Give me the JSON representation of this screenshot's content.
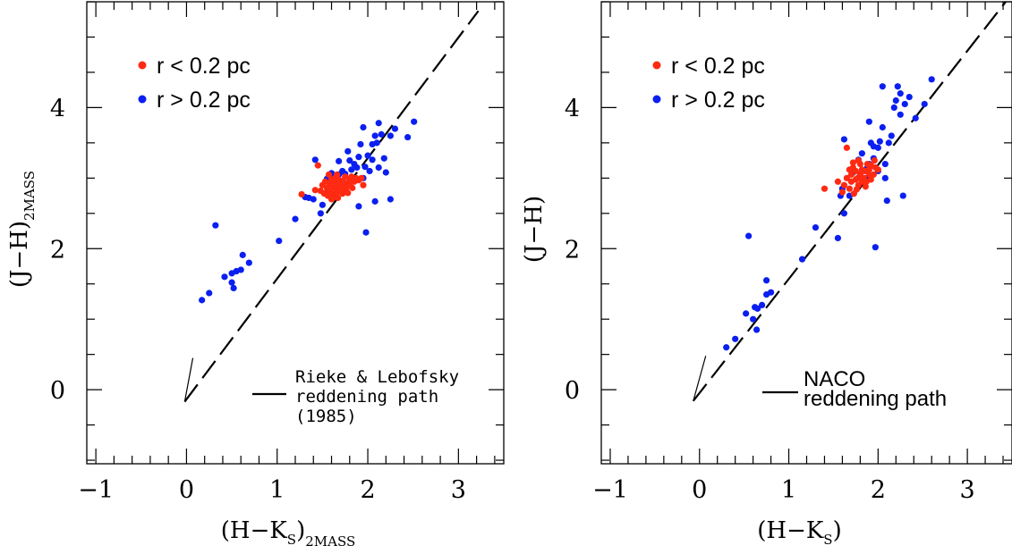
{
  "colors": {
    "r_lt": "#ff2a12",
    "r_gt": "#0a1ff0",
    "ink": "#000000"
  },
  "chart_data": [
    {
      "type": "scatter",
      "xlabel": {
        "main": "(H−K",
        "sub1": "S",
        "close": ")",
        "sub2": "2MASS"
      },
      "ylabel": {
        "main": "(J−H)",
        "sub": "2MASS"
      },
      "xlim": [
        -1.1,
        3.5
      ],
      "ylim": [
        -1.05,
        5.5
      ],
      "xticks": [
        -1,
        0,
        1,
        2,
        3
      ],
      "xtick_labels": [
        "−1",
        "0",
        "1",
        "2",
        "3"
      ],
      "yticks": [
        0,
        2,
        4
      ],
      "ytick_labels": [
        "0",
        "2",
        "4"
      ],
      "legend": [
        {
          "label": "r < 0.2 pc",
          "color": "#ff2a12"
        },
        {
          "label": "r > 0.2 pc",
          "color": "#0a1ff0"
        }
      ],
      "legend_position": "top-left",
      "annotation": [
        "Rieke & Lebofsky",
        "reddening path",
        "(1985)"
      ],
      "annotation_style": "serif",
      "reddening_line": {
        "from": [
          -0.02,
          -0.17
        ],
        "to": [
          3.22,
          5.37
        ]
      },
      "arrow_tip": [
        0.07,
        0.45
      ],
      "series": [
        {
          "name": "r > 0.2 pc",
          "color": "#0a1ff0",
          "points": [
            [
              0.17,
              1.27
            ],
            [
              0.25,
              1.37
            ],
            [
              0.42,
              1.6
            ],
            [
              0.5,
              1.65
            ],
            [
              0.55,
              1.68
            ],
            [
              0.52,
              1.44
            ],
            [
              0.6,
              1.7
            ],
            [
              0.62,
              1.91
            ],
            [
              0.69,
              1.8
            ],
            [
              0.32,
              2.33
            ],
            [
              0.5,
              1.52
            ],
            [
              1.02,
              2.11
            ],
            [
              1.2,
              2.42
            ],
            [
              1.31,
              2.73
            ],
            [
              1.35,
              2.72
            ],
            [
              1.4,
              2.7
            ],
            [
              1.42,
              3.26
            ],
            [
              1.48,
              2.5
            ],
            [
              1.5,
              2.62
            ],
            [
              1.55,
              2.8
            ],
            [
              1.55,
              2.99
            ],
            [
              1.6,
              3.07
            ],
            [
              1.63,
              3.02
            ],
            [
              1.68,
              3.05
            ],
            [
              1.68,
              3.24
            ],
            [
              1.72,
              3.1
            ],
            [
              1.75,
              3.06
            ],
            [
              1.78,
              3.38
            ],
            [
              1.8,
              3.25
            ],
            [
              1.82,
              3.12
            ],
            [
              1.85,
              3.0
            ],
            [
              1.85,
              3.2
            ],
            [
              1.88,
              3.15
            ],
            [
              1.9,
              3.3
            ],
            [
              1.92,
              3.48
            ],
            [
              1.95,
              3.72
            ],
            [
              1.95,
              3.0
            ],
            [
              1.97,
              3.16
            ],
            [
              1.98,
              2.23
            ],
            [
              2.0,
              3.32
            ],
            [
              2.02,
              3.1
            ],
            [
              2.05,
              3.26
            ],
            [
              2.05,
              3.48
            ],
            [
              2.08,
              3.6
            ],
            [
              2.08,
              2.67
            ],
            [
              2.1,
              3.5
            ],
            [
              2.12,
              3.78
            ],
            [
              2.12,
              3.15
            ],
            [
              2.15,
              3.62
            ],
            [
              2.18,
              3.28
            ],
            [
              2.2,
              3.08
            ],
            [
              2.25,
              3.6
            ],
            [
              2.25,
              2.7
            ],
            [
              2.3,
              3.7
            ],
            [
              2.44,
              3.58
            ],
            [
              2.51,
              3.8
            ],
            [
              1.9,
              2.6
            ]
          ]
        },
        {
          "name": "r < 0.2 pc",
          "color": "#ff2a12",
          "points": [
            [
              1.27,
              2.77
            ],
            [
              1.42,
              2.83
            ],
            [
              1.45,
              3.18
            ],
            [
              1.48,
              2.82
            ],
            [
              1.5,
              2.9
            ],
            [
              1.52,
              2.78
            ],
            [
              1.53,
              2.95
            ],
            [
              1.55,
              2.86
            ],
            [
              1.56,
              2.75
            ],
            [
              1.58,
              2.92
            ],
            [
              1.58,
              2.82
            ],
            [
              1.6,
              2.95
            ],
            [
              1.6,
              2.7
            ],
            [
              1.62,
              2.88
            ],
            [
              1.62,
              2.78
            ],
            [
              1.64,
              3.0
            ],
            [
              1.64,
              2.86
            ],
            [
              1.65,
              2.94
            ],
            [
              1.66,
              2.8
            ],
            [
              1.67,
              2.72
            ],
            [
              1.68,
              2.98
            ],
            [
              1.68,
              2.88
            ],
            [
              1.7,
              2.84
            ],
            [
              1.7,
              2.92
            ],
            [
              1.72,
              2.78
            ],
            [
              1.72,
              2.96
            ],
            [
              1.74,
              2.88
            ],
            [
              1.75,
              3.02
            ],
            [
              1.76,
              2.84
            ],
            [
              1.77,
              2.93
            ],
            [
              1.78,
              2.79
            ],
            [
              1.8,
              2.98
            ],
            [
              1.8,
              2.9
            ],
            [
              1.82,
              3.02
            ],
            [
              1.83,
              2.86
            ],
            [
              1.85,
              2.95
            ],
            [
              1.87,
              3.0
            ],
            [
              1.9,
              2.97
            ],
            [
              1.93,
              3.0
            ],
            [
              1.95,
              2.9
            ],
            [
              1.6,
              2.98
            ],
            [
              1.57,
              3.05
            ],
            [
              1.66,
              3.05
            ],
            [
              1.62,
              2.72
            ]
          ]
        }
      ]
    },
    {
      "type": "scatter",
      "xlabel": {
        "main": "(H−K",
        "sub1": "S",
        "close": ")",
        "sub2": ""
      },
      "ylabel": {
        "main": "(J−H)",
        "sub": ""
      },
      "xlim": [
        -1.1,
        3.5
      ],
      "ylim": [
        -1.05,
        5.5
      ],
      "xticks": [
        -1,
        0,
        1,
        2,
        3
      ],
      "xtick_labels": [
        "−1",
        "0",
        "1",
        "2",
        "3"
      ],
      "yticks": [
        0,
        2,
        4
      ],
      "ytick_labels": [
        "0",
        "2",
        "4"
      ],
      "legend": [
        {
          "label": "r < 0.2 pc",
          "color": "#ff2a12"
        },
        {
          "label": "r > 0.2 pc",
          "color": "#0a1ff0"
        }
      ],
      "legend_position": "top-left",
      "annotation": [
        "NACO",
        "reddening path"
      ],
      "annotation_style": "sans",
      "reddening_line": {
        "from": [
          -0.07,
          -0.16
        ],
        "to": [
          3.43,
          5.5
        ]
      },
      "arrow_tip": [
        0.07,
        0.48
      ],
      "series": [
        {
          "name": "r > 0.2 pc",
          "color": "#0a1ff0",
          "points": [
            [
              0.3,
              0.6
            ],
            [
              0.4,
              0.72
            ],
            [
              0.52,
              1.08
            ],
            [
              0.55,
              2.18
            ],
            [
              0.6,
              1.0
            ],
            [
              0.62,
              1.17
            ],
            [
              0.64,
              0.85
            ],
            [
              0.65,
              1.15
            ],
            [
              0.7,
              1.2
            ],
            [
              0.75,
              1.35
            ],
            [
              0.75,
              1.55
            ],
            [
              0.8,
              1.38
            ],
            [
              1.15,
              1.85
            ],
            [
              1.3,
              2.3
            ],
            [
              1.55,
              2.15
            ],
            [
              1.58,
              2.75
            ],
            [
              1.6,
              2.85
            ],
            [
              1.62,
              2.5
            ],
            [
              1.62,
              3.55
            ],
            [
              1.68,
              2.75
            ],
            [
              1.72,
              3.08
            ],
            [
              1.78,
              3.26
            ],
            [
              1.82,
              3.35
            ],
            [
              1.85,
              3.0
            ],
            [
              1.88,
              3.15
            ],
            [
              1.9,
              3.2
            ],
            [
              1.92,
              3.5
            ],
            [
              1.95,
              3.28
            ],
            [
              1.97,
              2.02
            ],
            [
              2.0,
              3.1
            ],
            [
              2.0,
              3.43
            ],
            [
              2.02,
              3.52
            ],
            [
              2.05,
              3.72
            ],
            [
              2.05,
              4.3
            ],
            [
              2.08,
              3.2
            ],
            [
              2.1,
              2.68
            ],
            [
              2.12,
              3.5
            ],
            [
              2.15,
              3.6
            ],
            [
              2.18,
              4.0
            ],
            [
              2.2,
              4.1
            ],
            [
              2.22,
              4.3
            ],
            [
              2.25,
              3.9
            ],
            [
              2.25,
              4.2
            ],
            [
              2.28,
              2.75
            ],
            [
              2.3,
              4.05
            ],
            [
              2.35,
              4.15
            ],
            [
              2.42,
              3.85
            ],
            [
              2.52,
              4.05
            ],
            [
              2.6,
              4.4
            ],
            [
              2.08,
              3.0
            ],
            [
              1.9,
              3.8
            ],
            [
              1.95,
              3.45
            ]
          ]
        },
        {
          "name": "r < 0.2 pc",
          "color": "#ff2a12",
          "points": [
            [
              1.4,
              2.85
            ],
            [
              1.55,
              2.95
            ],
            [
              1.6,
              2.8
            ],
            [
              1.62,
              2.9
            ],
            [
              1.65,
              3.0
            ],
            [
              1.65,
              3.43
            ],
            [
              1.68,
              2.85
            ],
            [
              1.7,
              3.05
            ],
            [
              1.7,
              2.95
            ],
            [
              1.72,
              3.15
            ],
            [
              1.73,
              2.78
            ],
            [
              1.75,
              3.1
            ],
            [
              1.75,
              2.98
            ],
            [
              1.77,
              3.0
            ],
            [
              1.78,
              2.9
            ],
            [
              1.8,
              3.2
            ],
            [
              1.8,
              3.05
            ],
            [
              1.82,
              3.12
            ],
            [
              1.82,
              2.95
            ],
            [
              1.84,
              3.0
            ],
            [
              1.85,
              3.1
            ],
            [
              1.86,
              2.88
            ],
            [
              1.88,
              3.2
            ],
            [
              1.9,
              3.05
            ],
            [
              1.9,
              3.12
            ],
            [
              1.92,
              2.98
            ],
            [
              1.95,
              3.05
            ],
            [
              1.97,
              3.15
            ],
            [
              2.0,
              3.12
            ],
            [
              1.87,
              2.95
            ],
            [
              1.92,
              3.18
            ],
            [
              1.72,
              3.22
            ],
            [
              1.78,
              3.25
            ],
            [
              1.96,
              3.25
            ],
            [
              1.76,
              2.84
            ],
            [
              1.68,
              3.12
            ]
          ]
        }
      ]
    }
  ]
}
